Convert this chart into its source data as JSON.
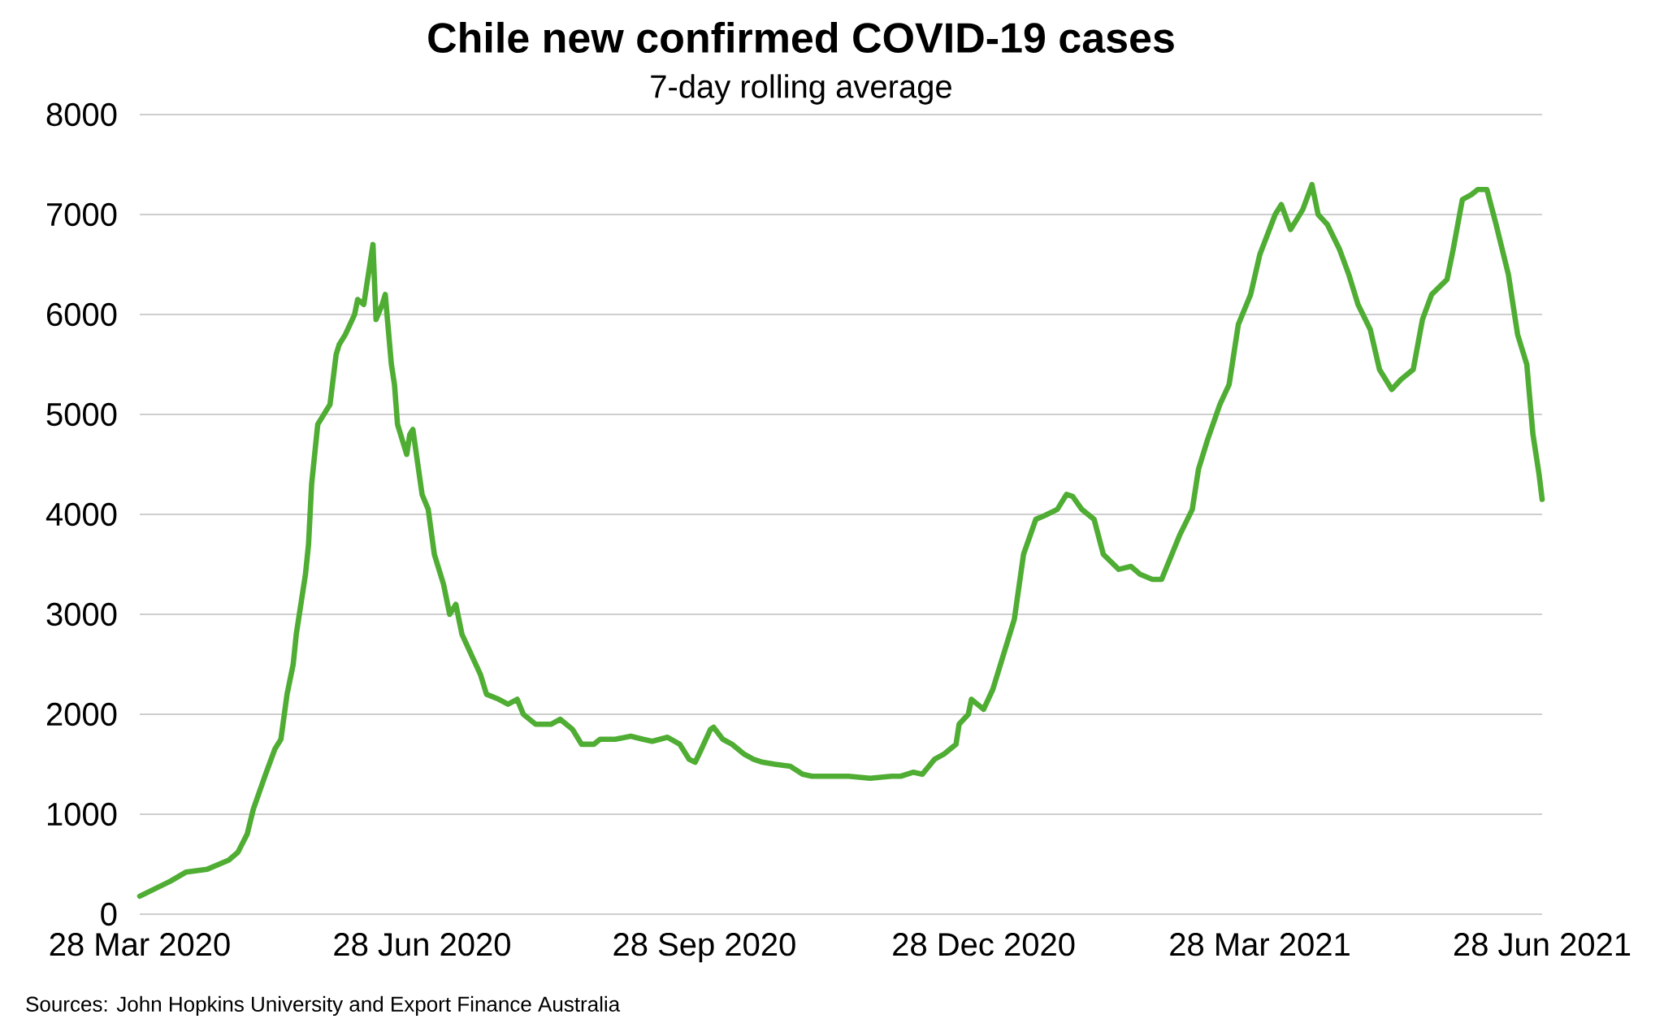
{
  "chart_data": {
    "type": "line",
    "title": "Chile new confirmed COVID-19 cases",
    "subtitle": "7-day rolling average",
    "annotations": [
      "Sources: John Hopkins University and Export Finance Australia"
    ],
    "color": "#4fad33",
    "x": [
      "2020-03-28",
      "2020-04-07",
      "2020-04-12",
      "2020-04-19",
      "2020-04-26",
      "2020-04-29",
      "2020-05-02",
      "2020-05-04",
      "2020-05-08",
      "2020-05-11",
      "2020-05-13",
      "2020-05-15",
      "2020-05-17",
      "2020-05-18",
      "2020-05-21",
      "2020-05-22",
      "2020-05-23",
      "2020-05-25",
      "2020-05-28",
      "2020-05-29",
      "2020-05-31",
      "2020-06-01",
      "2020-06-03",
      "2020-06-06",
      "2020-06-07",
      "2020-06-09",
      "2020-06-10",
      "2020-06-12",
      "2020-06-13",
      "2020-06-15",
      "2020-06-16",
      "2020-06-18",
      "2020-06-19",
      "2020-06-20",
      "2020-06-23",
      "2020-06-24",
      "2020-06-25",
      "2020-06-28",
      "2020-06-30",
      "2020-07-02",
      "2020-07-05",
      "2020-07-07",
      "2020-07-09",
      "2020-07-11",
      "2020-07-14",
      "2020-07-17",
      "2020-07-19",
      "2020-07-23",
      "2020-07-26",
      "2020-07-29",
      "2020-07-31",
      "2020-08-04",
      "2020-08-09",
      "2020-08-12",
      "2020-08-16",
      "2020-08-19",
      "2020-08-23",
      "2020-08-25",
      "2020-08-30",
      "2020-09-04",
      "2020-09-08",
      "2020-09-11",
      "2020-09-16",
      "2020-09-20",
      "2020-09-23",
      "2020-09-25",
      "2020-09-27",
      "2020-09-30",
      "2020-10-01",
      "2020-10-04",
      "2020-10-07",
      "2020-10-11",
      "2020-10-14",
      "2020-10-17",
      "2020-10-21",
      "2020-10-26",
      "2020-10-30",
      "2020-11-02",
      "2020-11-07",
      "2020-11-14",
      "2020-11-21",
      "2020-11-28",
      "2020-12-01",
      "2020-12-05",
      "2020-12-08",
      "2020-12-12",
      "2020-12-15",
      "2020-12-19",
      "2020-12-20",
      "2020-12-23",
      "2020-12-24",
      "2020-12-26",
      "2020-12-28",
      "2020-12-31",
      "2021-01-02",
      "2021-01-04",
      "2021-01-07",
      "2021-01-10",
      "2021-01-14",
      "2021-01-17",
      "2021-01-21",
      "2021-01-24",
      "2021-01-26",
      "2021-01-29",
      "2021-02-02",
      "2021-02-05",
      "2021-02-10",
      "2021-02-14",
      "2021-02-17",
      "2021-02-21",
      "2021-02-24",
      "2021-02-28",
      "2021-03-02",
      "2021-03-06",
      "2021-03-08",
      "2021-03-11",
      "2021-03-15",
      "2021-03-18",
      "2021-03-21",
      "2021-03-25",
      "2021-03-28",
      "2021-04-02",
      "2021-04-04",
      "2021-04-07",
      "2021-04-09",
      "2021-04-11",
      "2021-04-14",
      "2021-04-16",
      "2021-04-19",
      "2021-04-23",
      "2021-04-26",
      "2021-04-29",
      "2021-05-03",
      "2021-05-06",
      "2021-05-10",
      "2021-05-13",
      "2021-05-17",
      "2021-05-20",
      "2021-05-23",
      "2021-05-28",
      "2021-05-30",
      "2021-06-02",
      "2021-06-05",
      "2021-06-07",
      "2021-06-10",
      "2021-06-13",
      "2021-06-17",
      "2021-06-20",
      "2021-06-23",
      "2021-06-25",
      "2021-06-27",
      "2021-06-28"
    ],
    "values": [
      180,
      330,
      420,
      450,
      540,
      620,
      800,
      1050,
      1400,
      1650,
      1750,
      2200,
      2500,
      2800,
      3400,
      3700,
      4300,
      4900,
      5050,
      5100,
      5600,
      5700,
      5800,
      6000,
      6150,
      6100,
      6300,
      6700,
      5950,
      6100,
      6200,
      5500,
      5300,
      4900,
      4600,
      4800,
      4850,
      4200,
      4050,
      3600,
      3300,
      3000,
      3100,
      2800,
      2600,
      2400,
      2200,
      2150,
      2100,
      2150,
      2000,
      1900,
      1900,
      1950,
      1850,
      1700,
      1700,
      1750,
      1750,
      1780,
      1750,
      1730,
      1770,
      1700,
      1550,
      1520,
      1650,
      1850,
      1870,
      1750,
      1700,
      1600,
      1550,
      1520,
      1500,
      1480,
      1400,
      1380,
      1380,
      1380,
      1360,
      1380,
      1380,
      1420,
      1400,
      1550,
      1600,
      1700,
      1900,
      2000,
      2150,
      2100,
      2050,
      2250,
      2450,
      2650,
      2950,
      3600,
      3950,
      3990,
      4050,
      4200,
      4180,
      4050,
      3950,
      3600,
      3450,
      3480,
      3400,
      3350,
      3350,
      3650,
      3800,
      4050,
      4450,
      4750,
      5100,
      5300,
      5900,
      6200,
      6600,
      7000,
      7100,
      6850,
      6950,
      7050,
      7300,
      7000,
      6900,
      6650,
      6400,
      6100,
      5850,
      5450,
      5250,
      5350,
      5450,
      5950,
      6200,
      6350,
      6650,
      7150,
      7200,
      7250,
      7250,
      6900,
      6400,
      5800,
      5500,
      4800,
      4400,
      4150
    ],
    "xlim": [
      "2020-03-28",
      "2021-06-28"
    ],
    "xticks": [
      {
        "value": "2020-03-28",
        "label": "28 Mar 2020"
      },
      {
        "value": "2020-06-28",
        "label": "28 Jun 2020"
      },
      {
        "value": "2020-09-28",
        "label": "28 Sep 2020"
      },
      {
        "value": "2020-12-28",
        "label": "28 Dec 2020"
      },
      {
        "value": "2021-03-28",
        "label": "28 Mar 2021"
      },
      {
        "value": "2021-06-28",
        "label": "28 Jun 2021"
      }
    ],
    "ylim": [
      0,
      8000
    ],
    "yticks": [
      0,
      1000,
      2000,
      3000,
      4000,
      5000,
      6000,
      7000,
      8000
    ],
    "grid": "y"
  }
}
